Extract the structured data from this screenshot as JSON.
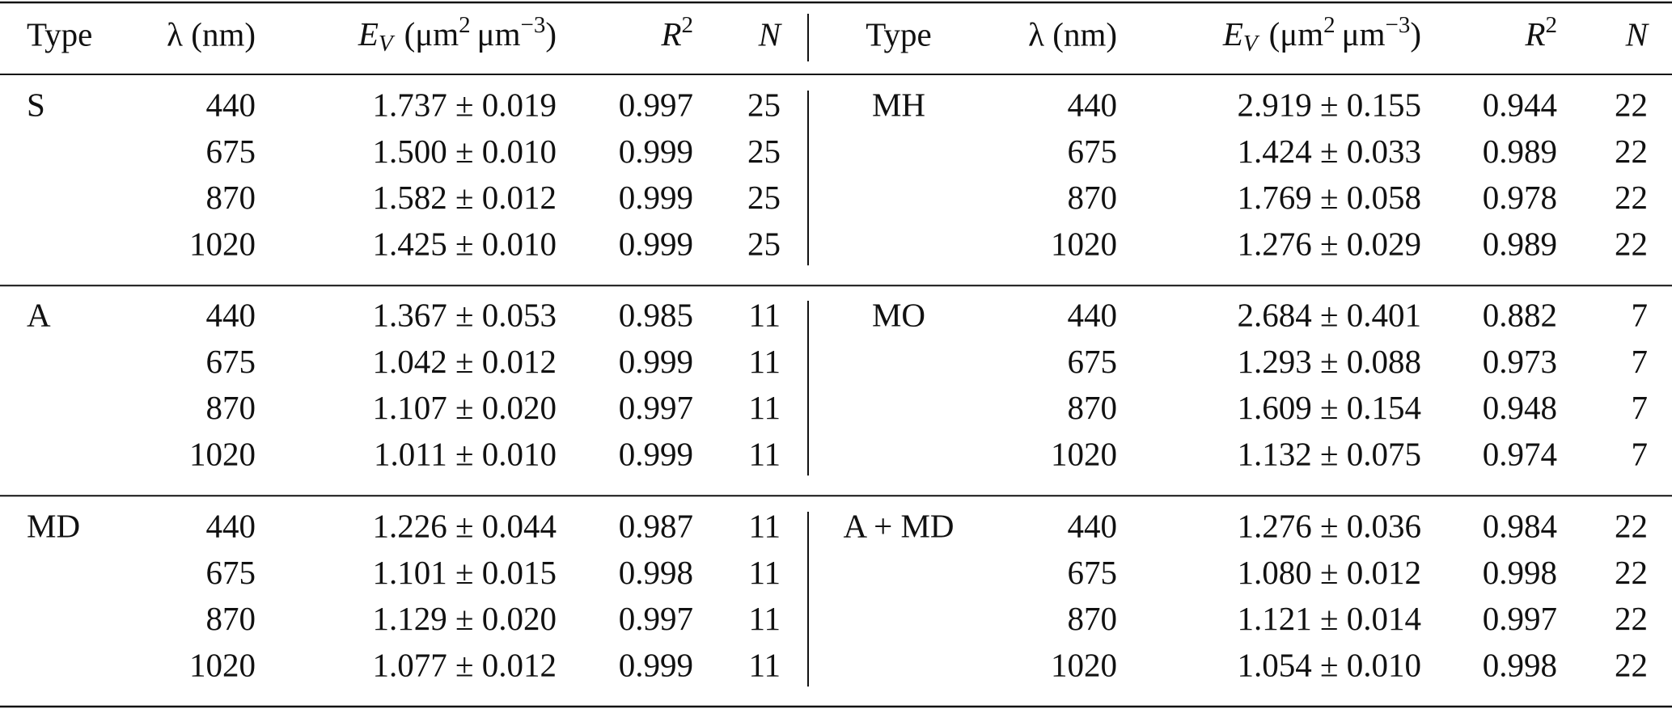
{
  "table": {
    "header": {
      "type": "Type",
      "lambda": "λ (nm)",
      "ev": {
        "symbol": "E",
        "sub": "V",
        "unit": [
          "(μm",
          "2",
          "μm",
          "−3",
          ")"
        ]
      },
      "r2": {
        "symbol": "R",
        "sup": "2"
      },
      "n": "N"
    },
    "groups": [
      {
        "left": {
          "type": "S",
          "rows": [
            [
              "440",
              "1.737 ± 0.019",
              "0.997",
              "25"
            ],
            [
              "675",
              "1.500 ± 0.010",
              "0.999",
              "25"
            ],
            [
              "870",
              "1.582 ± 0.012",
              "0.999",
              "25"
            ],
            [
              "1020",
              "1.425 ± 0.010",
              "0.999",
              "25"
            ]
          ]
        },
        "right": {
          "type": "MH",
          "rows": [
            [
              "440",
              "2.919 ± 0.155",
              "0.944",
              "22"
            ],
            [
              "675",
              "1.424 ± 0.033",
              "0.989",
              "22"
            ],
            [
              "870",
              "1.769 ± 0.058",
              "0.978",
              "22"
            ],
            [
              "1020",
              "1.276 ± 0.029",
              "0.989",
              "22"
            ]
          ]
        }
      },
      {
        "left": {
          "type": "A",
          "rows": [
            [
              "440",
              "1.367 ± 0.053",
              "0.985",
              "11"
            ],
            [
              "675",
              "1.042 ± 0.012",
              "0.999",
              "11"
            ],
            [
              "870",
              "1.107 ± 0.020",
              "0.997",
              "11"
            ],
            [
              "1020",
              "1.011 ± 0.010",
              "0.999",
              "11"
            ]
          ]
        },
        "right": {
          "type": "MO",
          "rows": [
            [
              "440",
              "2.684 ± 0.401",
              "0.882",
              "7"
            ],
            [
              "675",
              "1.293 ± 0.088",
              "0.973",
              "7"
            ],
            [
              "870",
              "1.609 ± 0.154",
              "0.948",
              "7"
            ],
            [
              "1020",
              "1.132 ± 0.075",
              "0.974",
              "7"
            ]
          ]
        }
      },
      {
        "left": {
          "type": "MD",
          "rows": [
            [
              "440",
              "1.226 ± 0.044",
              "0.987",
              "11"
            ],
            [
              "675",
              "1.101 ± 0.015",
              "0.998",
              "11"
            ],
            [
              "870",
              "1.129 ± 0.020",
              "0.997",
              "11"
            ],
            [
              "1020",
              "1.077 ± 0.012",
              "0.999",
              "11"
            ]
          ]
        },
        "right": {
          "type": "A + MD",
          "rows": [
            [
              "440",
              "1.276 ± 0.036",
              "0.984",
              "22"
            ],
            [
              "675",
              "1.080 ± 0.012",
              "0.998",
              "22"
            ],
            [
              "870",
              "1.121 ± 0.014",
              "0.997",
              "22"
            ],
            [
              "1020",
              "1.054 ± 0.010",
              "0.998",
              "22"
            ]
          ]
        }
      }
    ]
  }
}
